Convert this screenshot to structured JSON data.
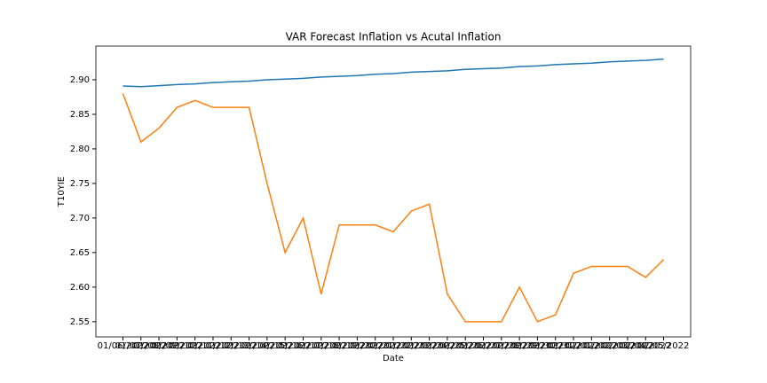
{
  "chart_data": {
    "type": "line",
    "title": "VAR Forecast Inflation vs Acutal Inflation",
    "x_label": "Date",
    "y_label": "T10YIE",
    "categories": [
      "01/06/2022",
      "01/07/2022",
      "01/08/2022",
      "01/09/2022",
      "01/10/2022",
      "01/11/2022",
      "01/12/2022",
      "01/13/2022",
      "01/14/2022",
      "01/15/2022",
      "01/16/2022",
      "01/17/2022",
      "01/18/2022",
      "01/19/2022",
      "01/20/2022",
      "01/21/2022",
      "01/22/2022",
      "01/23/2022",
      "01/24/2022",
      "01/25/2022",
      "01/26/2022",
      "01/27/2022",
      "01/28/2022",
      "01/29/2022",
      "01/30/2022",
      "01/31/2022",
      "02/01/2022",
      "02/02/2022",
      "02/03/2022",
      "02/04/2022",
      "02/05/2022"
    ],
    "series": [
      {
        "color": "#1f77b4",
        "values": [
          2.891,
          2.89,
          2.8915,
          2.893,
          2.894,
          2.896,
          2.897,
          2.898,
          2.9,
          2.901,
          2.902,
          2.904,
          2.905,
          2.906,
          2.908,
          2.909,
          2.911,
          2.912,
          2.913,
          2.915,
          2.916,
          2.917,
          2.919,
          2.92,
          2.922,
          2.923,
          2.924,
          2.926,
          2.927,
          2.928,
          2.93
        ]
      },
      {
        "color": "#ff7f0e",
        "values": [
          2.88,
          2.81,
          2.83,
          2.86,
          2.87,
          2.86,
          2.86,
          2.86,
          2.75,
          2.65,
          2.7,
          2.59,
          2.69,
          2.69,
          2.69,
          2.68,
          2.71,
          2.72,
          2.59,
          2.55,
          2.55,
          2.55,
          2.6,
          2.55,
          2.56,
          2.62,
          2.63,
          2.63,
          2.63,
          2.614,
          2.64
        ]
      }
    ],
    "ylim": [
      2.528,
      2.9487
    ],
    "yticks": [
      {
        "value": 2.55,
        "label": "2.55"
      },
      {
        "value": 2.6,
        "label": "2.60"
      },
      {
        "value": 2.65,
        "label": "2.65"
      },
      {
        "value": 2.7,
        "label": "2.70"
      },
      {
        "value": 2.75,
        "label": "2.75"
      },
      {
        "value": 2.8,
        "label": "2.80"
      },
      {
        "value": 2.85,
        "label": "2.85"
      },
      {
        "value": 2.9,
        "label": "2.90"
      }
    ]
  }
}
